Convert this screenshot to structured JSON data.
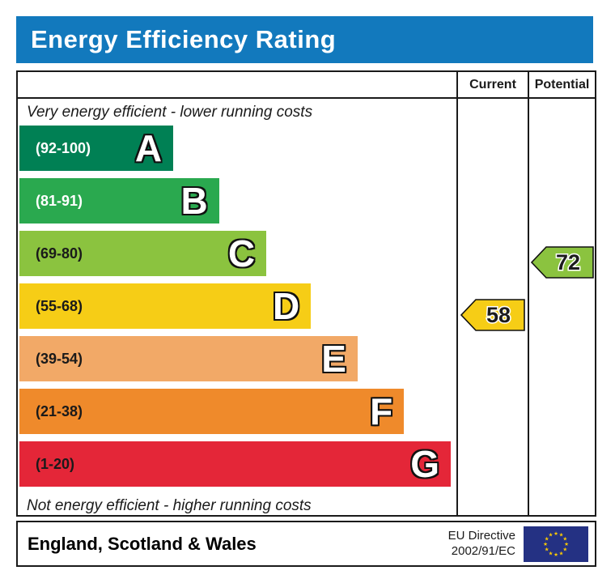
{
  "header": {
    "title": "Energy Efficiency Rating"
  },
  "table_headers": {
    "current": "Current",
    "potential": "Potential"
  },
  "chart_data": {
    "type": "bar",
    "title": "Energy Efficiency Rating",
    "top_caption": "Very energy efficient - lower running costs",
    "bottom_caption": "Not energy efficient - higher running costs",
    "bands": [
      {
        "letter": "A",
        "range": "(92-100)",
        "min": 92,
        "max": 100,
        "color": "#008054",
        "label_color": "#ffffff",
        "width_pct": 35.2
      },
      {
        "letter": "B",
        "range": "(81-91)",
        "min": 81,
        "max": 91,
        "color": "#2aa94f",
        "label_color": "#ffffff",
        "width_pct": 45.7
      },
      {
        "letter": "C",
        "range": "(69-80)",
        "min": 69,
        "max": 80,
        "color": "#8bc33f",
        "label_color": "#1a1a1a",
        "width_pct": 56.5
      },
      {
        "letter": "D",
        "range": "(55-68)",
        "min": 55,
        "max": 68,
        "color": "#f6cd16",
        "label_color": "#1a1a1a",
        "width_pct": 66.7
      },
      {
        "letter": "E",
        "range": "(39-54)",
        "min": 39,
        "max": 54,
        "color": "#f2a967",
        "label_color": "#1a1a1a",
        "width_pct": 77.4
      },
      {
        "letter": "F",
        "range": "(21-38)",
        "min": 21,
        "max": 38,
        "color": "#ef8a2b",
        "label_color": "#1a1a1a",
        "width_pct": 88.0
      },
      {
        "letter": "G",
        "range": "(1-20)",
        "min": 1,
        "max": 20,
        "color": "#e42638",
        "label_color": "#1a1a1a",
        "width_pct": 98.7
      }
    ],
    "current": {
      "value": 58,
      "band": "D",
      "row_index": 3,
      "color": "#f6cd16"
    },
    "potential": {
      "value": 72,
      "band": "C",
      "row_index": 2,
      "color": "#8bc33f"
    }
  },
  "footer": {
    "region": "England, Scotland & Wales",
    "directive_line1": "EU Directive",
    "directive_line2": "2002/91/EC"
  },
  "icons": {
    "eu_star": "★"
  },
  "theme": {
    "title_bg": "#1279bd",
    "border_color": "#1a1a1a",
    "eu_flag_blue": "#243183",
    "eu_star_yellow": "#ffcc00"
  }
}
